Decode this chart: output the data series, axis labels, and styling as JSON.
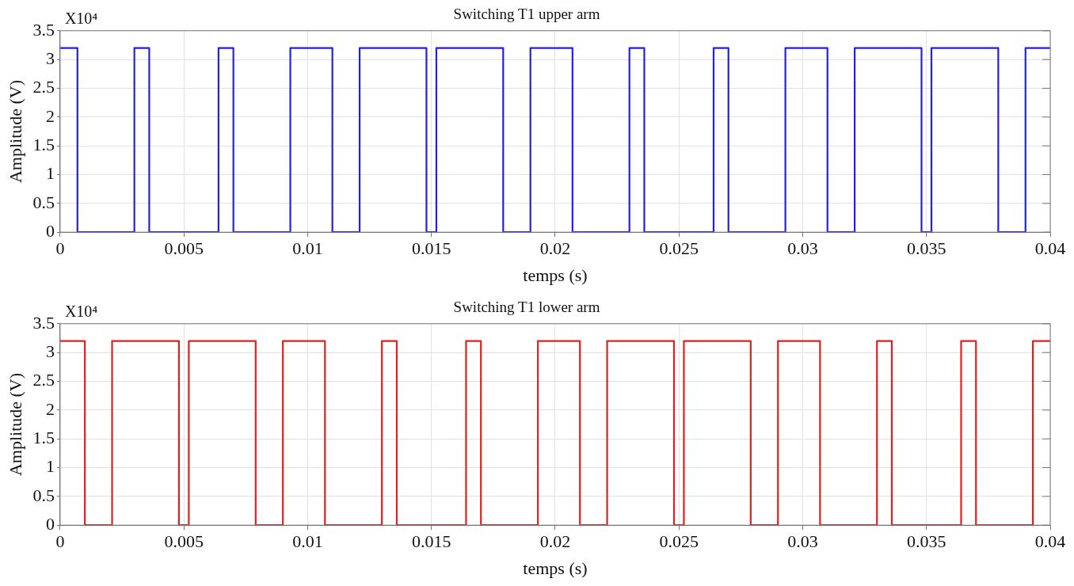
{
  "chart_data": [
    {
      "type": "step",
      "title": "Switching T1 upper arm",
      "xlabel": "temps (s)",
      "ylabel": "Amplitude (V)",
      "annotations": [
        "X10⁴"
      ],
      "series": [
        {
          "color": "#2222dd",
          "x": [
            0,
            0.0007,
            0.003,
            0.0036,
            0.0064,
            0.007,
            0.0093,
            0.011,
            0.0121,
            0.0148,
            0.0152,
            0.0179,
            0.019,
            0.0207,
            0.023,
            0.0236,
            0.0264,
            0.027,
            0.0293,
            0.031,
            0.0321,
            0.0348,
            0.0352,
            0.0379,
            0.039,
            0.04
          ],
          "values": [
            3.2,
            0,
            3.2,
            0,
            3.2,
            0,
            3.2,
            0,
            3.2,
            0,
            3.2,
            0,
            3.2,
            0,
            3.2,
            0,
            3.2,
            0,
            3.2,
            0,
            3.2,
            0,
            3.2,
            0,
            3.2,
            3.2
          ]
        }
      ],
      "xlim": [
        0,
        0.04
      ],
      "xticks": [
        0,
        0.005,
        0.01,
        0.015,
        0.02,
        0.025,
        0.03,
        0.035,
        0.04
      ],
      "ylim": [
        0,
        3.5
      ],
      "yticks": [
        0,
        0.5,
        1,
        1.5,
        2,
        2.5,
        3,
        3.5
      ],
      "grid": true,
      "legend": false
    },
    {
      "type": "step",
      "title": "Switching T1 lower arm",
      "xlabel": "temps (s)",
      "ylabel": "Amplitude (V)",
      "annotations": [
        "X10⁴"
      ],
      "series": [
        {
          "color": "#dd2222",
          "x": [
            0,
            0.001,
            0.0021,
            0.0048,
            0.0052,
            0.0079,
            0.009,
            0.0107,
            0.013,
            0.0136,
            0.0164,
            0.017,
            0.0193,
            0.021,
            0.0221,
            0.0248,
            0.0252,
            0.0279,
            0.029,
            0.0307,
            0.033,
            0.0336,
            0.0364,
            0.037,
            0.0393,
            0.04
          ],
          "values": [
            3.2,
            0,
            3.2,
            0,
            3.2,
            0,
            3.2,
            0,
            3.2,
            0,
            3.2,
            0,
            3.2,
            0,
            3.2,
            0,
            3.2,
            0,
            3.2,
            0,
            3.2,
            0,
            3.2,
            0,
            3.2,
            3.2
          ]
        }
      ],
      "xlim": [
        0,
        0.04
      ],
      "xticks": [
        0,
        0.005,
        0.01,
        0.015,
        0.02,
        0.025,
        0.03,
        0.035,
        0.04
      ],
      "ylim": [
        0,
        3.5
      ],
      "yticks": [
        0,
        0.5,
        1,
        1.5,
        2,
        2.5,
        3,
        3.5
      ],
      "grid": true,
      "legend": false
    }
  ]
}
